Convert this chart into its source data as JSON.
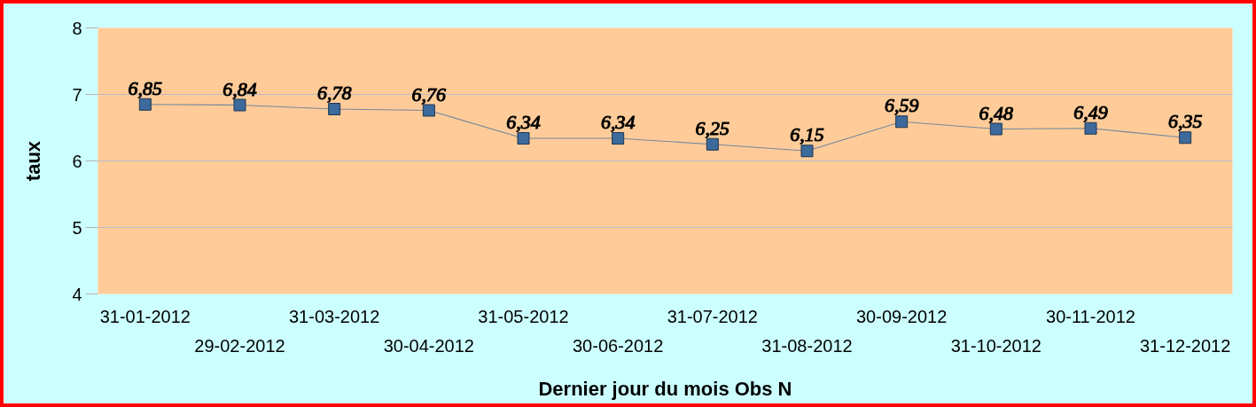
{
  "chart_data": {
    "type": "line",
    "xlabel": "Dernier jour du mois Obs N",
    "ylabel": "taux",
    "categories": [
      "31-01-2012",
      "29-02-2012",
      "31-03-2012",
      "30-04-2012",
      "31-05-2012",
      "30-06-2012",
      "31-07-2012",
      "31-08-2012",
      "30-09-2012",
      "31-10-2012",
      "30-11-2012",
      "31-12-2012"
    ],
    "series": [
      {
        "color": "#3c6a9c",
        "values": [
          6.85,
          6.84,
          6.78,
          6.76,
          6.34,
          6.34,
          6.25,
          6.15,
          6.59,
          6.48,
          6.49,
          6.35
        ],
        "value_labels": [
          "6,85",
          "6,84",
          "6,78",
          "6,76",
          "6,34",
          "6,34",
          "6,25",
          "6,15",
          "6,59",
          "6,48",
          "6,49",
          "6,35"
        ]
      }
    ],
    "ylim": [
      4,
      8
    ],
    "yticks": [
      4,
      5,
      6,
      7,
      8
    ],
    "grid": "y",
    "marker": "square",
    "line_style": "solid"
  }
}
